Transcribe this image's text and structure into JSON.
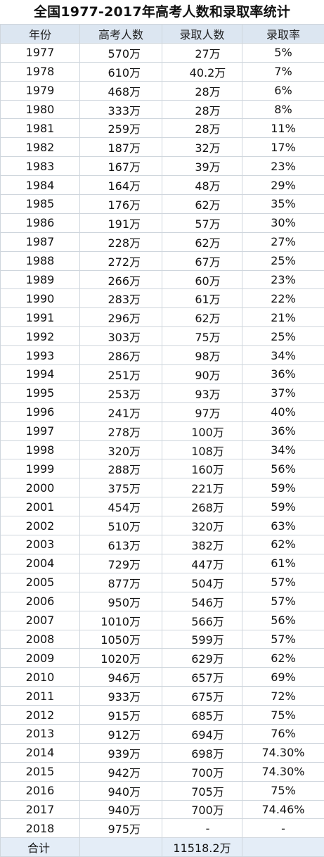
{
  "title": "全国1977-2017年高考人数和录取率统计",
  "headers": [
    "年份",
    "高考人数",
    "录取人数",
    "录取率"
  ],
  "rows": [
    [
      "1977",
      "570万",
      "27万",
      "5%"
    ],
    [
      "1978",
      "610万",
      "40.2万",
      "7%"
    ],
    [
      "1979",
      "468万",
      "28万",
      "6%"
    ],
    [
      "1980",
      "333万",
      "28万",
      "8%"
    ],
    [
      "1981",
      "259万",
      "28万",
      "11%"
    ],
    [
      "1982",
      "187万",
      "32万",
      "17%"
    ],
    [
      "1983",
      "167万",
      "39万",
      "23%"
    ],
    [
      "1984",
      "164万",
      "48万",
      "29%"
    ],
    [
      "1985",
      "176万",
      "62万",
      "35%"
    ],
    [
      "1986",
      "191万",
      "57万",
      "30%"
    ],
    [
      "1987",
      "228万",
      "62万",
      "27%"
    ],
    [
      "1988",
      "272万",
      "67万",
      "25%"
    ],
    [
      "1989",
      "266万",
      "60万",
      "23%"
    ],
    [
      "1990",
      "283万",
      "61万",
      "22%"
    ],
    [
      "1991",
      "296万",
      "62万",
      "21%"
    ],
    [
      "1992",
      "303万",
      "75万",
      "25%"
    ],
    [
      "1993",
      "286万",
      "98万",
      "34%"
    ],
    [
      "1994",
      "251万",
      "90万",
      "36%"
    ],
    [
      "1995",
      "253万",
      "93万",
      "37%"
    ],
    [
      "1996",
      "241万",
      "97万",
      "40%"
    ],
    [
      "1997",
      "278万",
      "100万",
      "36%"
    ],
    [
      "1998",
      "320万",
      "108万",
      "34%"
    ],
    [
      "1999",
      "288万",
      "160万",
      "56%"
    ],
    [
      "2000",
      "375万",
      "221万",
      "59%"
    ],
    [
      "2001",
      "454万",
      "268万",
      "59%"
    ],
    [
      "2002",
      "510万",
      "320万",
      "63%"
    ],
    [
      "2003",
      "613万",
      "382万",
      "62%"
    ],
    [
      "2004",
      "729万",
      "447万",
      "61%"
    ],
    [
      "2005",
      "877万",
      "504万",
      "57%"
    ],
    [
      "2006",
      "950万",
      "546万",
      "57%"
    ],
    [
      "2007",
      "1010万",
      "566万",
      "56%"
    ],
    [
      "2008",
      "1050万",
      "599万",
      "57%"
    ],
    [
      "2009",
      "1020万",
      "629万",
      "62%"
    ],
    [
      "2010",
      "946万",
      "657万",
      "69%"
    ],
    [
      "2011",
      "933万",
      "675万",
      "72%"
    ],
    [
      "2012",
      "915万",
      "685万",
      "75%"
    ],
    [
      "2013",
      "912万",
      "694万",
      "76%"
    ],
    [
      "2014",
      "939万",
      "698万",
      "74.30%"
    ],
    [
      "2015",
      "942万",
      "700万",
      "74.30%"
    ],
    [
      "2016",
      "940万",
      "705万",
      "75%"
    ],
    [
      "2017",
      "940万",
      "700万",
      "74.46%"
    ],
    [
      "2018",
      "975万",
      "-",
      "-"
    ]
  ],
  "footer": {
    "label": "合计",
    "total": "11518.2万"
  },
  "colors": {
    "header_bg": "#dce6f1",
    "footer_bg": "#e4edf7",
    "grid": "#cfd6dd"
  }
}
